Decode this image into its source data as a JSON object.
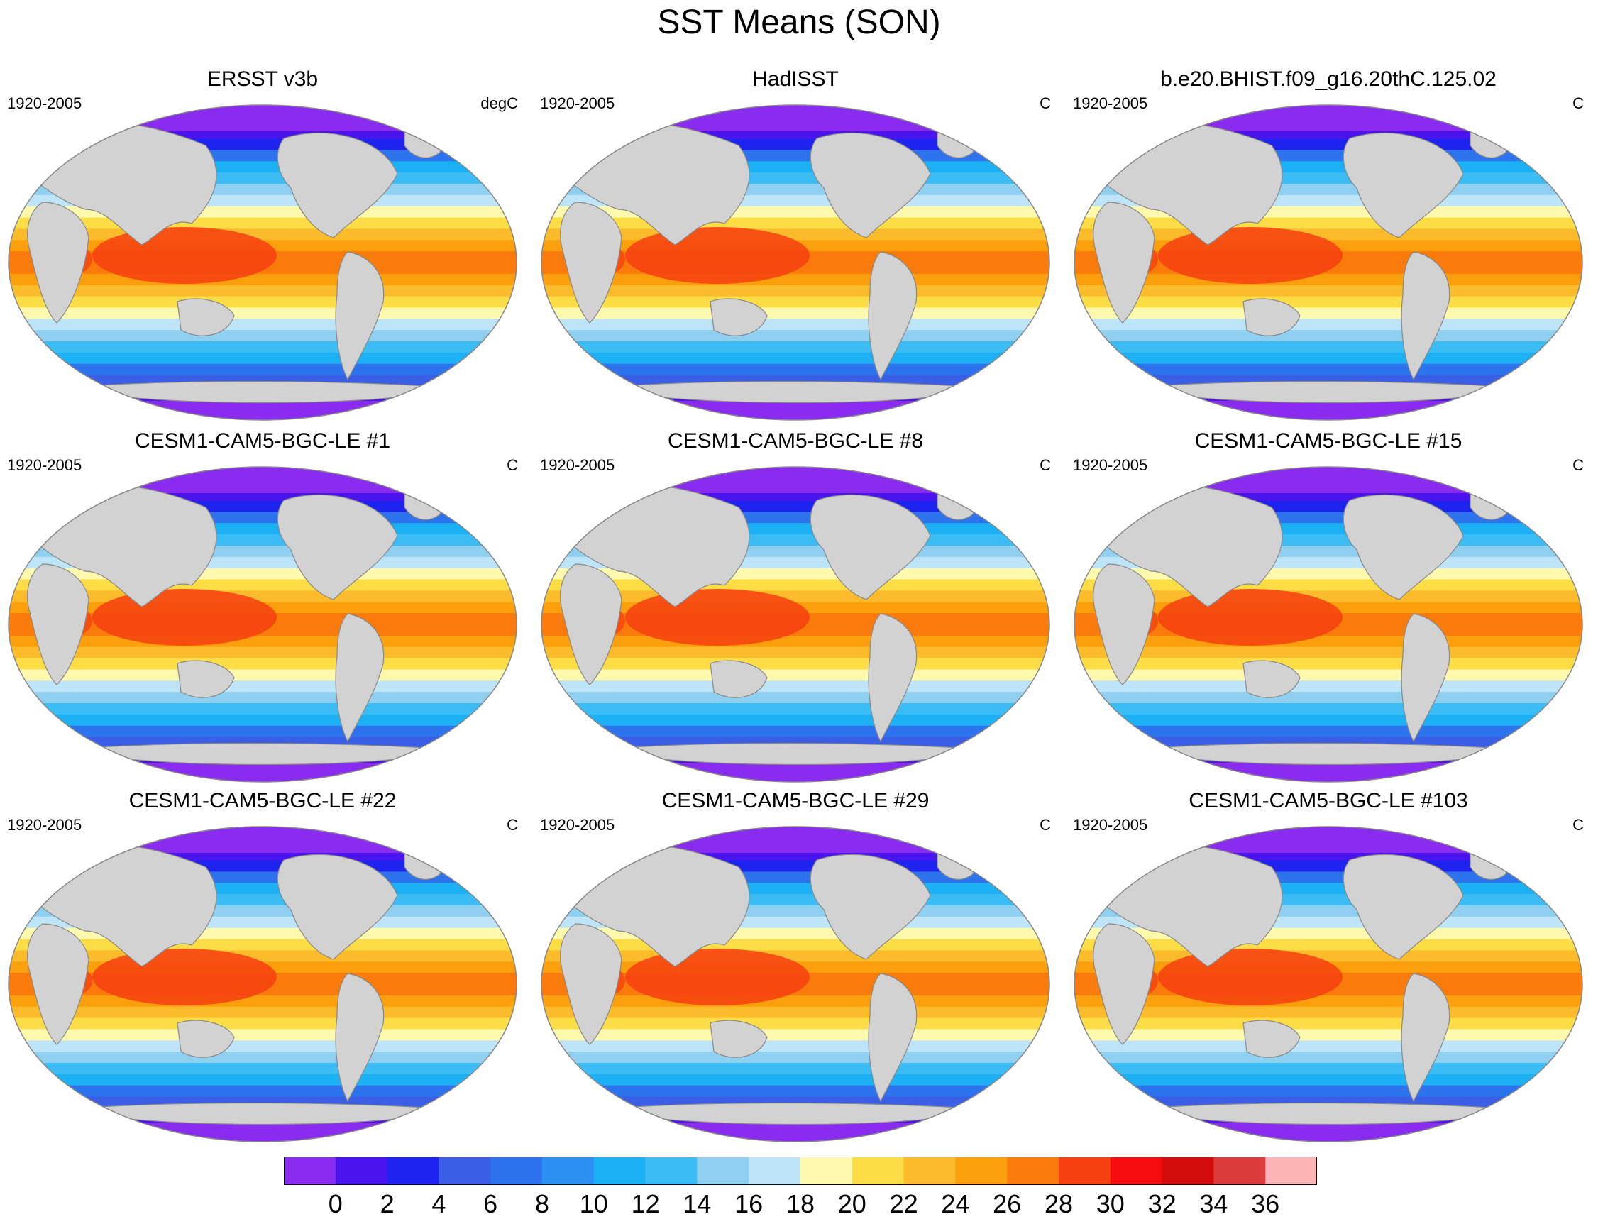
{
  "title": "SST Means (SON)",
  "panels": [
    {
      "title": "ERSST v3b",
      "period": "1920-2005",
      "units": "degC"
    },
    {
      "title": "HadISST",
      "period": "1920-2005",
      "units": "C"
    },
    {
      "title": "b.e20.BHIST.f09_g16.20thC.125.02",
      "period": "1920-2005",
      "units": "C"
    },
    {
      "title": "CESM1-CAM5-BGC-LE #1",
      "period": "1920-2005",
      "units": "C"
    },
    {
      "title": "CESM1-CAM5-BGC-LE #8",
      "period": "1920-2005",
      "units": "C"
    },
    {
      "title": "CESM1-CAM5-BGC-LE #15",
      "period": "1920-2005",
      "units": "C"
    },
    {
      "title": "CESM1-CAM5-BGC-LE #22",
      "period": "1920-2005",
      "units": "C"
    },
    {
      "title": "CESM1-CAM5-BGC-LE #29",
      "period": "1920-2005",
      "units": "C"
    },
    {
      "title": "CESM1-CAM5-BGC-LE #103",
      "period": "1920-2005",
      "units": "C"
    }
  ],
  "colorbar": {
    "labels": [
      "0",
      "2",
      "4",
      "6",
      "8",
      "10",
      "12",
      "14",
      "16",
      "18",
      "20",
      "22",
      "24",
      "26",
      "28",
      "30",
      "32",
      "34",
      "36"
    ],
    "colors": [
      "#8a2cf0",
      "#4a14ee",
      "#1f23f0",
      "#3a5ee6",
      "#2e73ee",
      "#2c8ff2",
      "#1cb0f5",
      "#3cbcf4",
      "#8fcff0",
      "#bde4f7",
      "#fff9ae",
      "#fcdd46",
      "#fbbb2a",
      "#fb9f0c",
      "#fa7a0c",
      "#f64010",
      "#f60c0c",
      "#d30c0c",
      "#dc3c3c",
      "#fcb4b4"
    ]
  },
  "map_colors": {
    "land": "#d2d2d2",
    "outline": "#888888"
  }
}
